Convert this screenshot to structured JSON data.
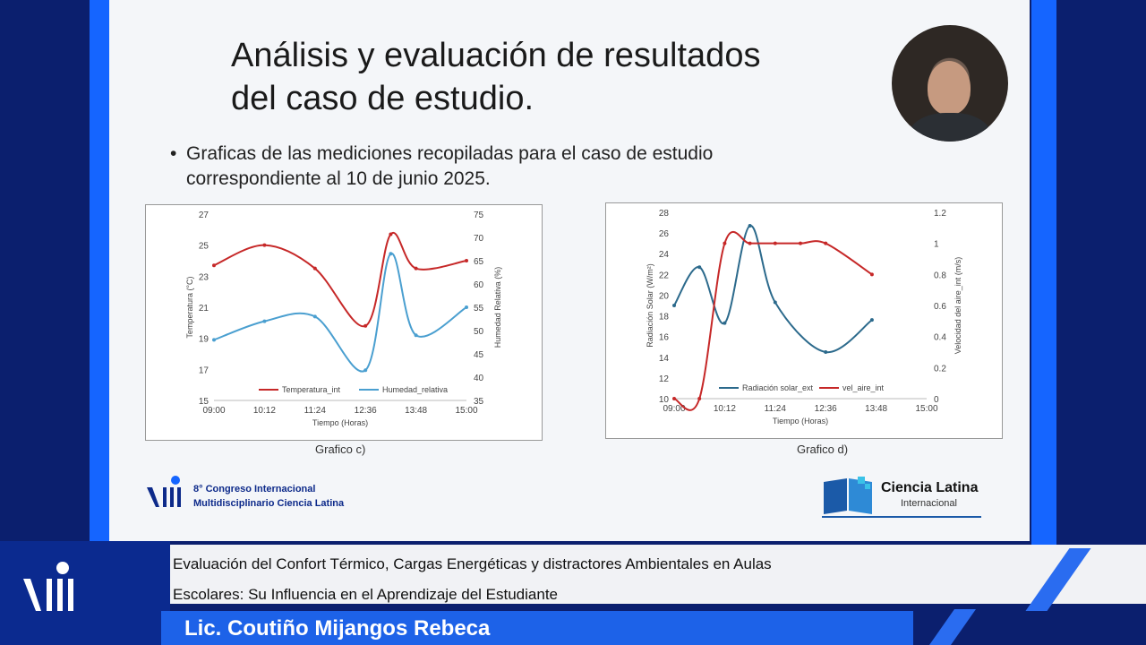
{
  "slide": {
    "title_line1": "Análisis y evaluación de resultados",
    "title_line2": "del caso de estudio.",
    "bullet_line1": "Graficas de las mediciones recopiladas para el caso de estudio",
    "bullet_line2": "correspondiente al 10 de junio 2025.",
    "congress_line1": "8° Congreso Internacional",
    "congress_line2": "Multidisciplinario Ciencia Latina",
    "cl_name": "Ciencia Latina",
    "cl_sub": "Internacional",
    "logo_text": "VIII"
  },
  "lower_third": {
    "talk_line1": "Evaluación del Confort Térmico, Cargas Energéticas y distractores Ambientales en Aulas",
    "talk_line2": "Escolares: Su Influencia en el Aprendizaje del Estudiante",
    "speaker": "Lic. Coutiño Mijangos Rebeca"
  },
  "colors": {
    "red": "#c62828",
    "blue": "#4a9fd0",
    "dark_blue": "#2c6a8c",
    "brand": "#1565ff"
  },
  "chart_data": [
    {
      "type": "line",
      "caption": "Grafico c)",
      "x": [
        "09:00",
        "10:12",
        "11:24",
        "12:36",
        "13:48",
        "15:00"
      ],
      "x_positions": [
        0,
        72,
        144,
        216,
        288,
        360
      ],
      "xlabel": "Tiempo (Horas)",
      "ylabel": "Temperatura (°C)",
      "y2label": "Humedad Relativa (%)",
      "ylim": [
        15,
        27
      ],
      "y2lim": [
        35,
        75
      ],
      "yticks": [
        15,
        17,
        19,
        21,
        23,
        25,
        27
      ],
      "y2ticks": [
        35,
        40,
        45,
        50,
        55,
        60,
        65,
        70,
        75
      ],
      "series": [
        {
          "name": "Temperatura_int",
          "axis": "left",
          "color": "#c62828",
          "points": [
            [
              0,
              23.7
            ],
            [
              72,
              25.0
            ],
            [
              144,
              23.5
            ],
            [
              216,
              19.8
            ],
            [
              252,
              25.7
            ],
            [
              288,
              23.5
            ],
            [
              360,
              24.0
            ]
          ]
        },
        {
          "name": "Humedad_relativa",
          "axis": "right",
          "color": "#4a9fd0",
          "points": [
            [
              0,
              48
            ],
            [
              72,
              52
            ],
            [
              144,
              53
            ],
            [
              216,
              41.5
            ],
            [
              252,
              66.5
            ],
            [
              288,
              49
            ],
            [
              360,
              55
            ]
          ]
        }
      ]
    },
    {
      "type": "line",
      "caption": "Grafico d)",
      "x": [
        "09:00",
        "10:12",
        "11:24",
        "12:36",
        "13:48",
        "15:00"
      ],
      "x_positions": [
        0,
        72,
        144,
        216,
        288,
        360
      ],
      "xlabel": "Tiempo (Horas)",
      "ylabel": "Radiación Solar (W/m²)",
      "y2label": "Velocidad del aire_int (m/s)",
      "ylim": [
        10,
        28
      ],
      "y2lim": [
        0,
        1.2
      ],
      "yticks": [
        10,
        12,
        14,
        16,
        18,
        20,
        22,
        24,
        26,
        28
      ],
      "y2ticks": [
        0,
        0.2,
        0.4,
        0.6,
        0.8,
        1,
        1.2
      ],
      "series": [
        {
          "name": "Radiación solar_ext",
          "axis": "left",
          "color": "#2c6a8c",
          "points": [
            [
              0,
              19
            ],
            [
              36,
              22.7
            ],
            [
              72,
              17.3
            ],
            [
              108,
              26.7
            ],
            [
              144,
              19.3
            ],
            [
              216,
              14.5
            ],
            [
              282,
              17.6
            ]
          ]
        },
        {
          "name": "vel_aire_int",
          "axis": "right",
          "color": "#c62828",
          "points": [
            [
              0,
              0
            ],
            [
              36,
              0
            ],
            [
              72,
              1.0
            ],
            [
              108,
              1.0
            ],
            [
              144,
              1.0
            ],
            [
              180,
              1.0
            ],
            [
              216,
              1.0
            ],
            [
              282,
              0.8
            ]
          ]
        }
      ]
    }
  ]
}
